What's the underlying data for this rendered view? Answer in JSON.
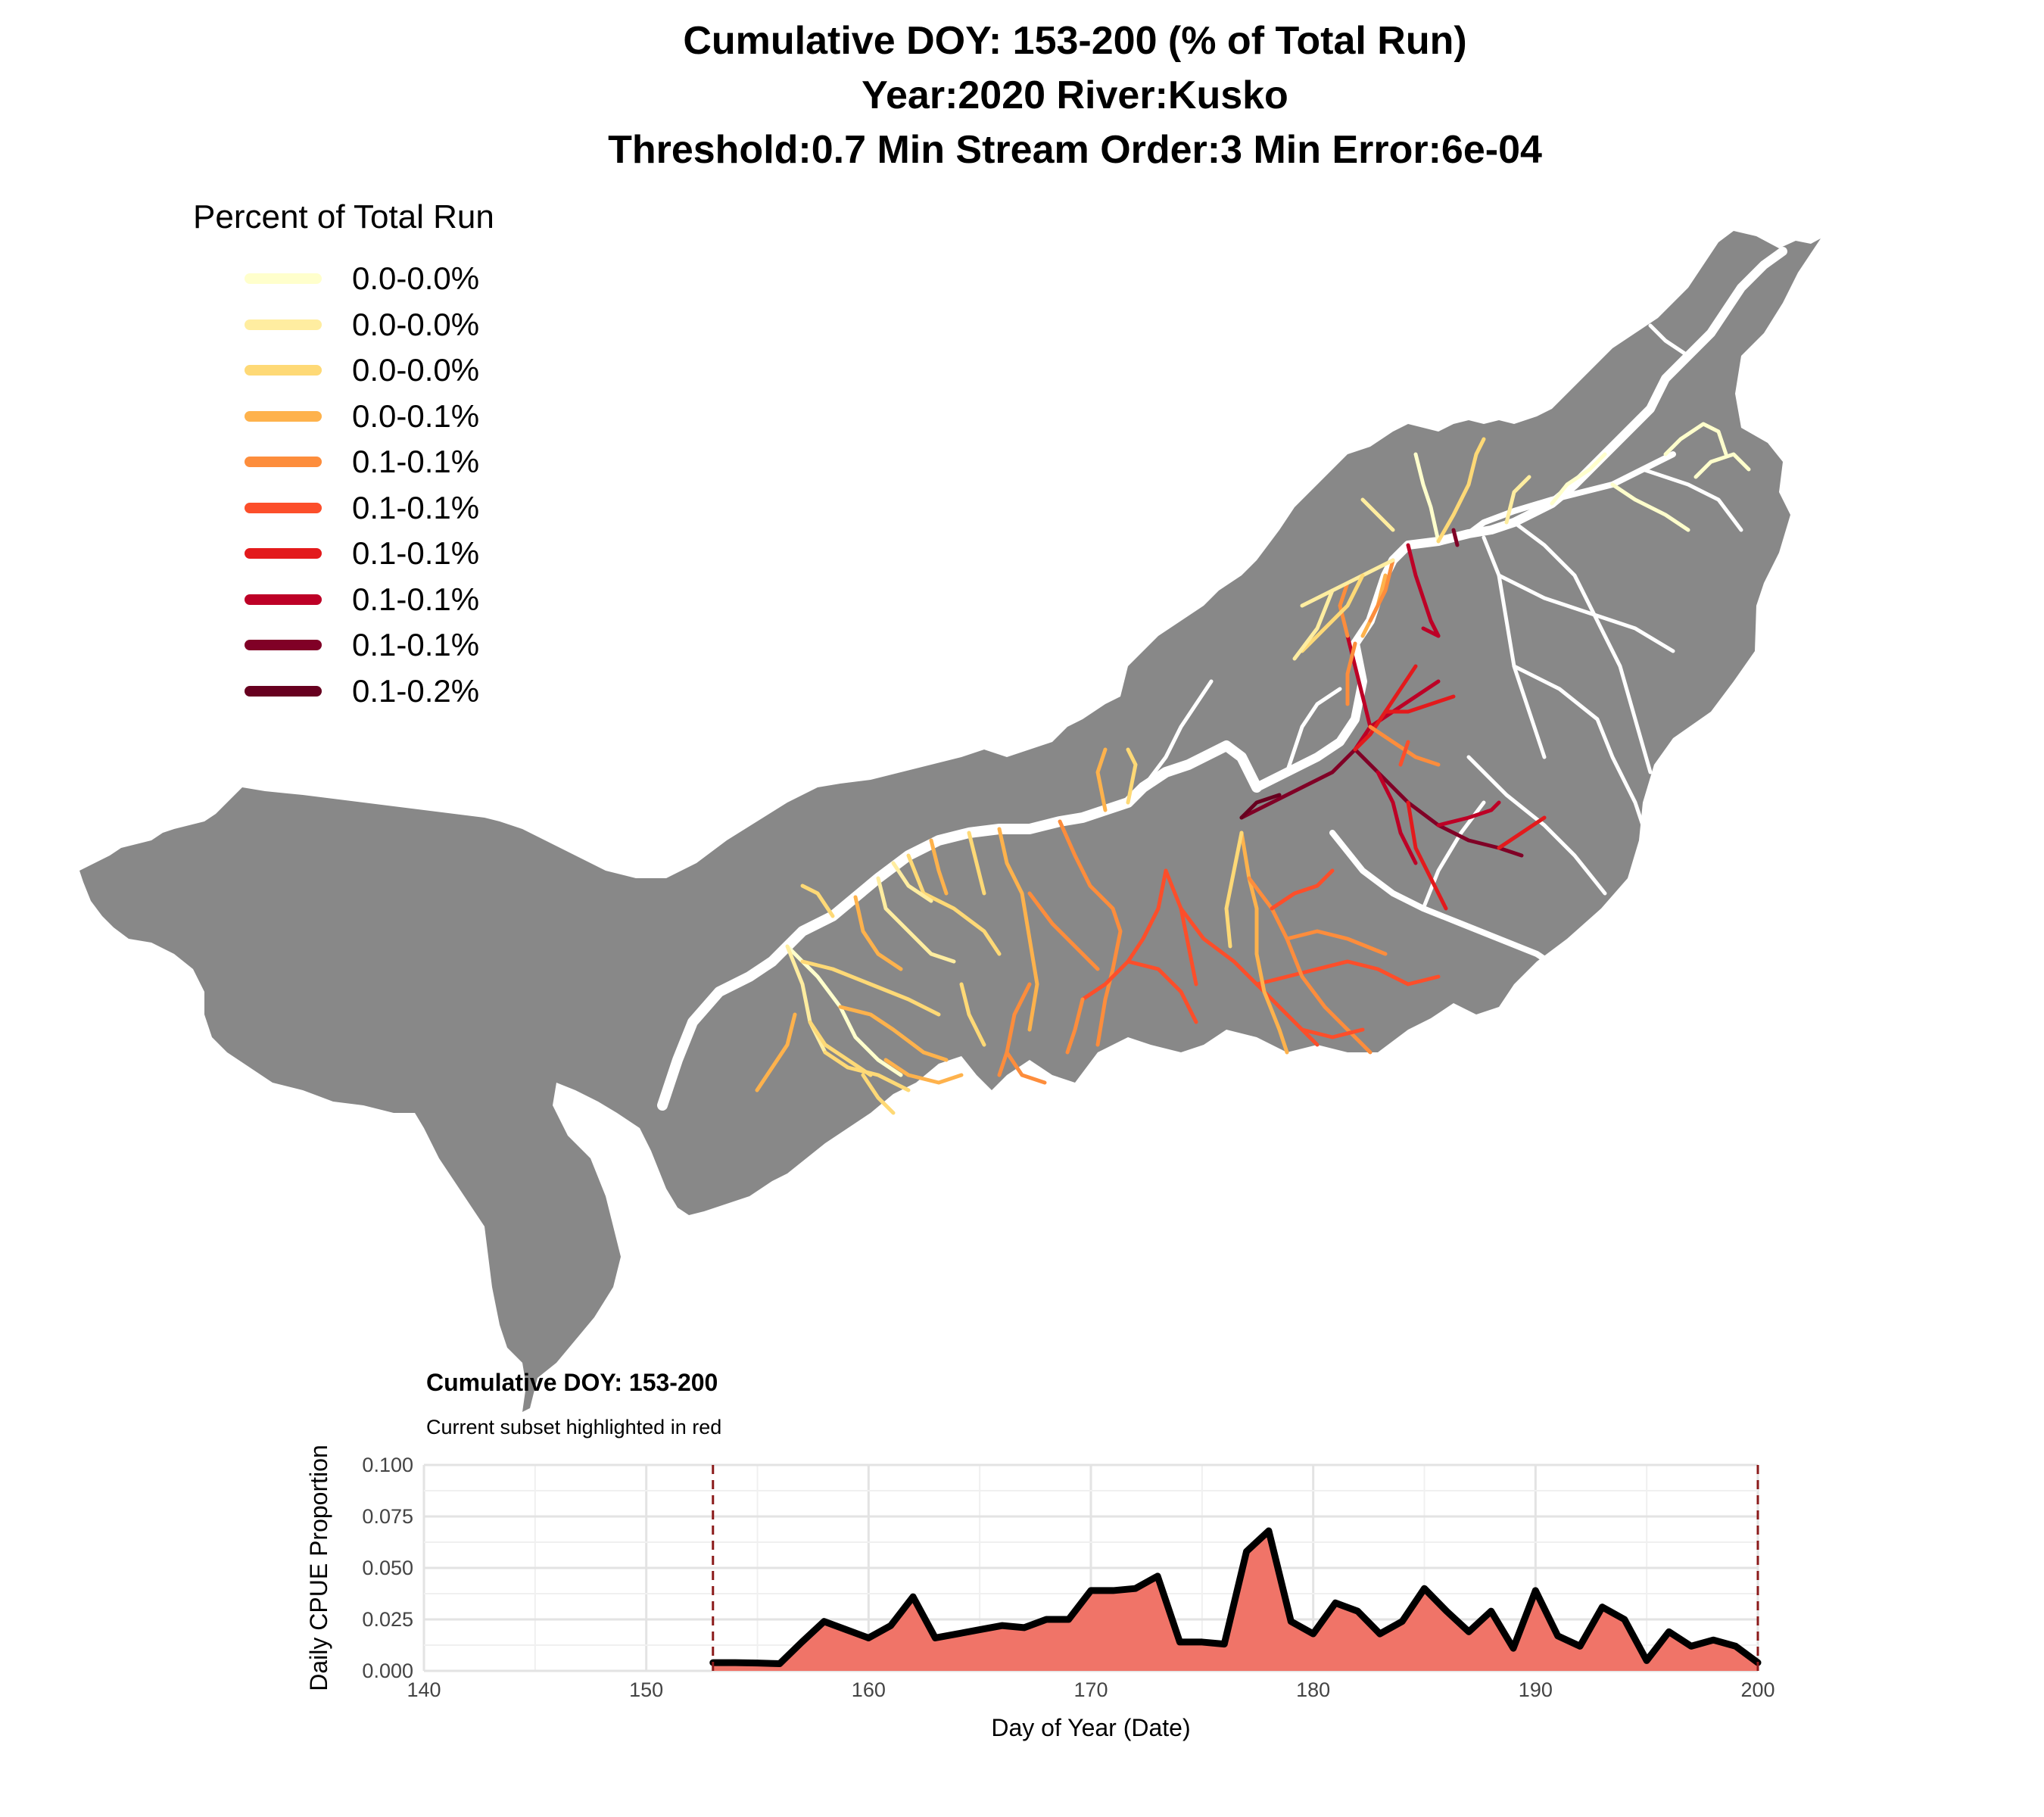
{
  "title": {
    "line1": "Cumulative DOY: 153-200 (% of Total Run)",
    "line2": "Year:2020 River:Kusko",
    "line3": "Threshold:0.7 Min Stream Order:3 Min Error:6e-04"
  },
  "legend": {
    "title": "Percent of Total Run",
    "items": [
      {
        "label": "0.0-0.0%",
        "color": "#FFFFCC"
      },
      {
        "label": "0.0-0.0%",
        "color": "#FFEDA0"
      },
      {
        "label": "0.0-0.0%",
        "color": "#FED976"
      },
      {
        "label": "0.0-0.1%",
        "color": "#FEB24C"
      },
      {
        "label": "0.1-0.1%",
        "color": "#FD8D3C"
      },
      {
        "label": "0.1-0.1%",
        "color": "#FC4E2A"
      },
      {
        "label": "0.1-0.1%",
        "color": "#E31A1C"
      },
      {
        "label": "0.1-0.1%",
        "color": "#BD0026"
      },
      {
        "label": "0.1-0.1%",
        "color": "#800026"
      },
      {
        "label": "0.1-0.2%",
        "color": "#67001F"
      }
    ]
  },
  "map": {
    "basin_color": "#888888",
    "mainstem_color": "#FFFFFF"
  },
  "chart_data": {
    "type": "area",
    "title": "Cumulative DOY: 153-200",
    "subtitle": "Current subset highlighted in red",
    "xlabel": "Day of Year (Date)",
    "ylabel": "Daily CPUE Proportion",
    "xlim": [
      140,
      200
    ],
    "ylim": [
      0,
      0.1
    ],
    "x_ticks": [
      140,
      150,
      160,
      170,
      180,
      190,
      200
    ],
    "y_ticks": [
      0.0,
      0.025,
      0.05,
      0.075,
      0.1
    ],
    "y_tick_labels": [
      "0.000",
      "0.025",
      "0.050",
      "0.075",
      "0.100"
    ],
    "grid": true,
    "highlight_range": [
      153,
      200
    ],
    "fill_color": "#F07468",
    "line_color": "#000000",
    "vline_color": "#8B1A1A",
    "x": [
      153,
      154,
      155,
      156,
      157,
      158,
      159,
      160,
      161,
      162,
      163,
      164,
      165,
      166,
      167,
      168,
      169,
      170,
      171,
      172,
      173,
      174,
      175,
      176,
      177,
      178,
      179,
      180,
      181,
      182,
      183,
      184,
      185,
      186,
      187,
      188,
      189,
      190,
      191,
      192,
      193,
      194,
      195,
      196,
      197,
      198,
      199,
      200
    ],
    "values": [
      0.004,
      0.004,
      0.0038,
      0.0035,
      0.014,
      0.024,
      0.02,
      0.016,
      0.022,
      0.036,
      0.016,
      0.018,
      0.02,
      0.022,
      0.021,
      0.025,
      0.025,
      0.039,
      0.039,
      0.04,
      0.046,
      0.014,
      0.014,
      0.013,
      0.058,
      0.068,
      0.024,
      0.018,
      0.033,
      0.029,
      0.018,
      0.024,
      0.04,
      0.029,
      0.019,
      0.029,
      0.011,
      0.039,
      0.017,
      0.012,
      0.031,
      0.025,
      0.005,
      0.019,
      0.012,
      0.015,
      0.012,
      0.004
    ]
  }
}
